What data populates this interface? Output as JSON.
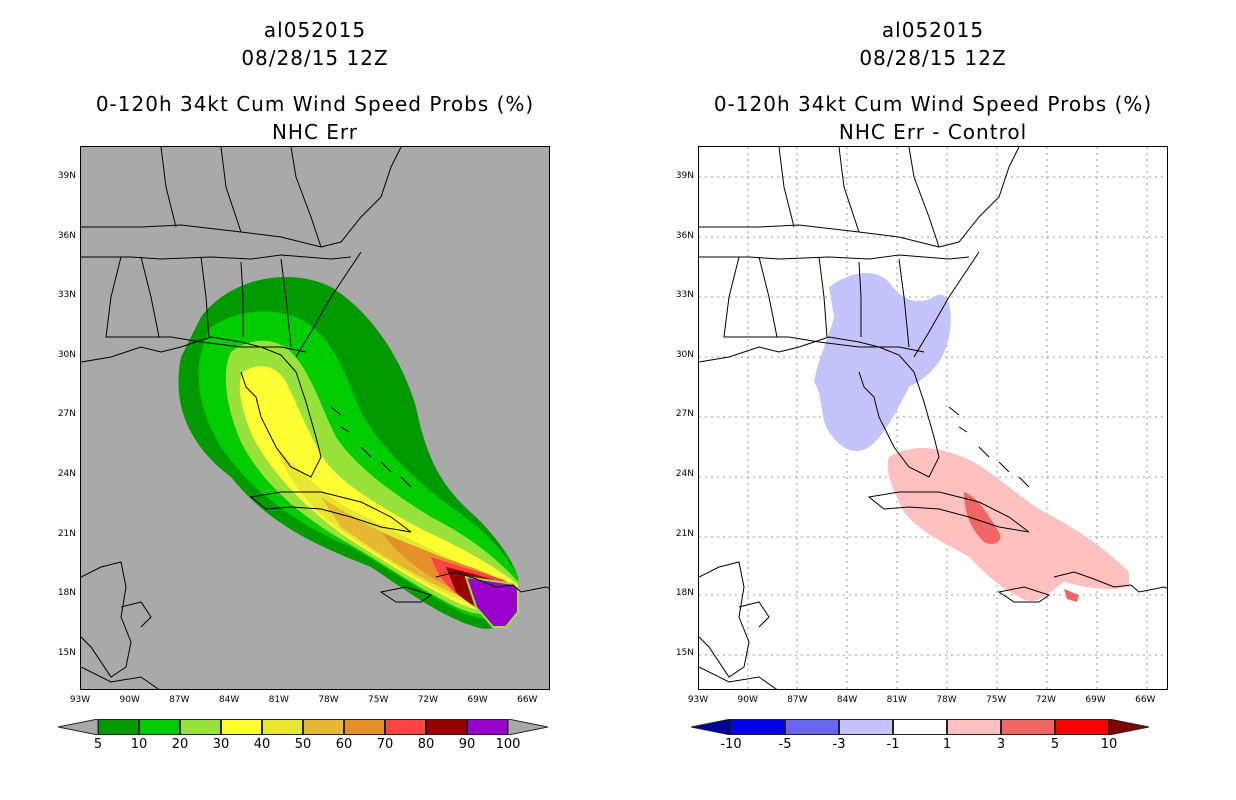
{
  "left": {
    "title1": "al052015",
    "title2": "08/28/15 12Z",
    "title3": "0-120h 34kt Cum Wind Speed Probs (%)",
    "title4": "NHC Err",
    "colorbar": {
      "levels": [
        "5",
        "10",
        "20",
        "30",
        "40",
        "50",
        "60",
        "70",
        "80",
        "90",
        "100"
      ],
      "colors": [
        "#009900",
        "#00cc00",
        "#99e23c",
        "#ffff33",
        "#e6e633",
        "#e6b833",
        "#e6902a",
        "#ff4444",
        "#990000",
        "#9900cc"
      ],
      "below_color": "#a9a9a9",
      "above_color": "#a9a9a9"
    },
    "background": "#a9a9a9"
  },
  "right": {
    "title1": "al052015",
    "title2": "08/28/15 12Z",
    "title3": "0-120h 34kt Cum Wind Speed Probs (%)",
    "title4": "NHC Err - Control",
    "colorbar": {
      "levels": [
        "-10",
        "-5",
        "-3",
        "-1",
        "1",
        "3",
        "5",
        "10"
      ],
      "colors": [
        "#0000e6",
        "#6666ee",
        "#c4c4fa",
        "#ffffff",
        "#ffc0c0",
        "#f06666",
        "#ff0000"
      ],
      "below_color": "#000099",
      "above_color": "#800000"
    }
  },
  "axes": {
    "lat_labels": [
      "39N",
      "36N",
      "33N",
      "30N",
      "27N",
      "24N",
      "21N",
      "18N",
      "15N"
    ],
    "lon_labels": [
      "93W",
      "90W",
      "87W",
      "84W",
      "81W",
      "78W",
      "75W",
      "72W",
      "69W",
      "66W"
    ],
    "lat_range": [
      13,
      40.5
    ],
    "lon_range": [
      -93,
      -64.5
    ]
  }
}
